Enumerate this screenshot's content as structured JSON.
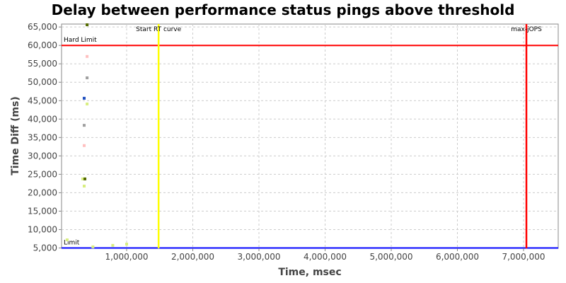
{
  "chart_data": {
    "type": "scatter",
    "title": "Delay between performance status pings above threshold",
    "xlabel": "Time, msec",
    "ylabel": "Time Diff (ms)",
    "xlim": [
      16000,
      7524000
    ],
    "ylim": [
      4900,
      65800
    ],
    "grid": true,
    "x_ticks": [
      1000000,
      2000000,
      3000000,
      4000000,
      5000000,
      6000000,
      7000000
    ],
    "x_tick_labels": [
      "1,000,000",
      "2,000,000",
      "3,000,000",
      "4,000,000",
      "5,000,000",
      "6,000,000",
      "7,000,000"
    ],
    "y_ticks": [
      5000,
      10000,
      15000,
      20000,
      25000,
      30000,
      35000,
      40000,
      45000,
      50000,
      55000,
      60000,
      65000
    ],
    "y_tick_labels": [
      "5,000",
      "10,000",
      "15,000",
      "20,000",
      "25,000",
      "30,000",
      "35,000",
      "40,000",
      "45,000",
      "50,000",
      "55,000",
      "60,000",
      "65,000"
    ],
    "points": [
      {
        "x": 402000,
        "y": 65600,
        "color": "#556b00"
      },
      {
        "x": 402000,
        "y": 57000,
        "color": "#ffc0c0"
      },
      {
        "x": 402000,
        "y": 51200,
        "color": "#a0a0a0"
      },
      {
        "x": 358000,
        "y": 45650,
        "color": "#1e4fbf"
      },
      {
        "x": 402000,
        "y": 44100,
        "color": "#d8ee80"
      },
      {
        "x": 358000,
        "y": 38300,
        "color": "#a0a0a0"
      },
      {
        "x": 358000,
        "y": 32800,
        "color": "#ffc0c0"
      },
      {
        "x": 337000,
        "y": 23750,
        "color": "#d8ee80"
      },
      {
        "x": 369000,
        "y": 23750,
        "color": "#556b00"
      },
      {
        "x": 358000,
        "y": 21800,
        "color": "#d8ee80"
      },
      {
        "x": 100000,
        "y": 7200,
        "color": "#d8ee80"
      },
      {
        "x": 490000,
        "y": 5300,
        "color": "#d8ee80"
      },
      {
        "x": 790000,
        "y": 5700,
        "color": "#d8ee80"
      },
      {
        "x": 1000000,
        "y": 6050,
        "color": "#d8ee80"
      }
    ],
    "h_lines": [
      {
        "label": "Hard Limit",
        "y": 60000,
        "color": "#ff0000"
      },
      {
        "label": "Limit",
        "y": 5000,
        "color": "#0000ff"
      }
    ],
    "v_lines": [
      {
        "label": "Start RT curve",
        "x": 1483000,
        "color": "#ffff00"
      },
      {
        "label": "max-jOPS",
        "x": 7043000,
        "color": "#ff0000"
      }
    ]
  }
}
